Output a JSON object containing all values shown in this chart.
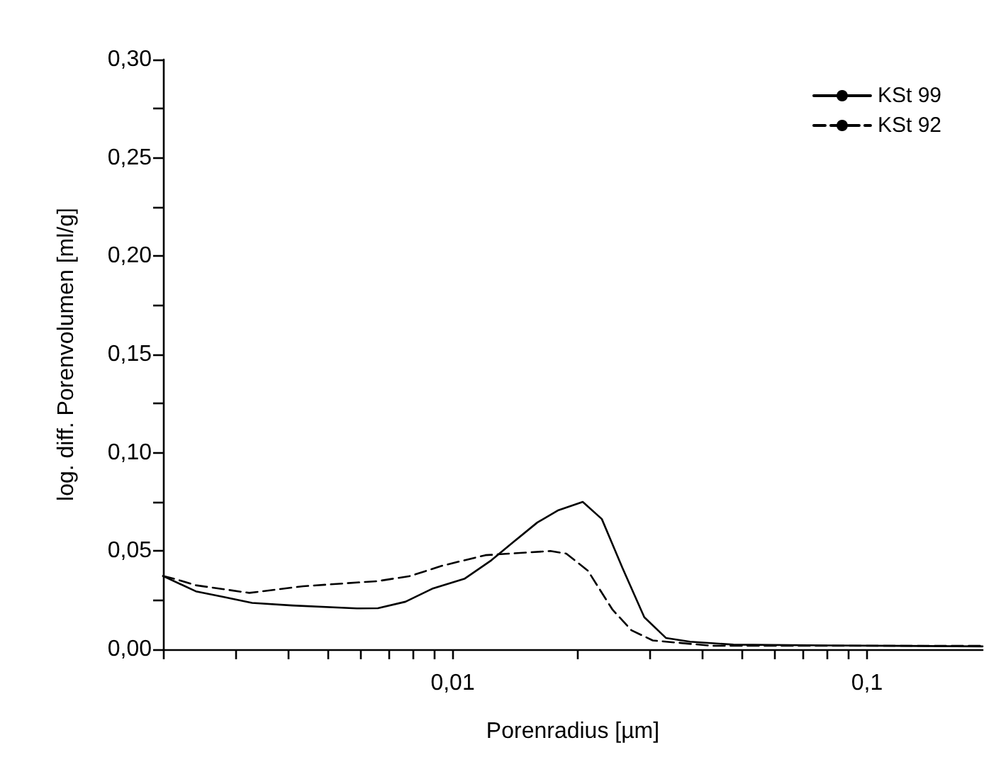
{
  "chart_data": {
    "type": "line",
    "xlabel": "Porenradius [µm]",
    "ylabel": "log. diff. Porenvolumen [ml/g]",
    "log": "x",
    "grid": false,
    "legend": "top right",
    "marker": "none",
    "xlim": [
      0.002,
      0.19
    ],
    "ylim": [
      0,
      0.3
    ],
    "xticks": [
      {
        "value": 0.002,
        "label": null
      },
      {
        "value": 0.003,
        "label": null
      },
      {
        "value": 0.004,
        "label": null
      },
      {
        "value": 0.005,
        "label": null
      },
      {
        "value": 0.006,
        "label": null
      },
      {
        "value": 0.007,
        "label": null
      },
      {
        "value": 0.008,
        "label": null
      },
      {
        "value": 0.009,
        "label": null
      },
      {
        "value": 0.01,
        "label": "0,01"
      },
      {
        "value": 0.02,
        "label": null
      },
      {
        "value": 0.03,
        "label": null
      },
      {
        "value": 0.04,
        "label": null
      },
      {
        "value": 0.05,
        "label": null
      },
      {
        "value": 0.06,
        "label": null
      },
      {
        "value": 0.07,
        "label": null
      },
      {
        "value": 0.08,
        "label": null
      },
      {
        "value": 0.09,
        "label": null
      },
      {
        "value": 0.1,
        "label": "0,1"
      }
    ],
    "yticks": [
      {
        "value": 0,
        "label": "0,00"
      },
      {
        "value": 0.025,
        "label": null
      },
      {
        "value": 0.05,
        "label": "0,05"
      },
      {
        "value": 0.075,
        "label": null
      },
      {
        "value": 0.1,
        "label": "0,10"
      },
      {
        "value": 0.125,
        "label": null
      },
      {
        "value": 0.15,
        "label": "0,15"
      },
      {
        "value": 0.175,
        "label": null
      },
      {
        "value": 0.2,
        "label": "0,20"
      },
      {
        "value": 0.225,
        "label": null
      },
      {
        "value": 0.25,
        "label": "0,25"
      },
      {
        "value": 0.275,
        "label": null
      },
      {
        "value": 0.3,
        "label": "0,30"
      }
    ],
    "series": [
      {
        "name": "KSt 99",
        "color": "#000000",
        "line_style": "solid",
        "x": [
          0.002,
          0.0024,
          0.00278,
          0.00328,
          0.0041,
          0.00587,
          0.0066,
          0.00769,
          0.00892,
          0.0107,
          0.0124,
          0.014,
          0.016,
          0.018,
          0.0206,
          0.0229,
          0.0257,
          0.029,
          0.0327,
          0.0374,
          0.0476,
          0.08,
          0.19
        ],
        "values": [
          0.0373,
          0.0295,
          0.0268,
          0.0236,
          0.0223,
          0.0208,
          0.0209,
          0.0242,
          0.0308,
          0.036,
          0.0453,
          0.0545,
          0.0645,
          0.0708,
          0.075,
          0.0663,
          0.0413,
          0.0163,
          0.0058,
          0.0039,
          0.0024,
          0.002,
          0.0015
        ]
      },
      {
        "name": "KSt 92",
        "color": "#000000",
        "line_style": "dashed",
        "x": [
          0.002,
          0.00212,
          0.0024,
          0.00323,
          0.00436,
          0.0066,
          0.0079,
          0.00946,
          0.012,
          0.0172,
          0.0188,
          0.0212,
          0.0243,
          0.027,
          0.0304,
          0.0422,
          0.08,
          0.19
        ],
        "values": [
          0.0373,
          0.036,
          0.0326,
          0.0287,
          0.0321,
          0.0347,
          0.0373,
          0.0426,
          0.0479,
          0.05,
          0.0487,
          0.04,
          0.0202,
          0.0097,
          0.0045,
          0.0018,
          0.0018,
          0.0018
        ]
      }
    ]
  }
}
